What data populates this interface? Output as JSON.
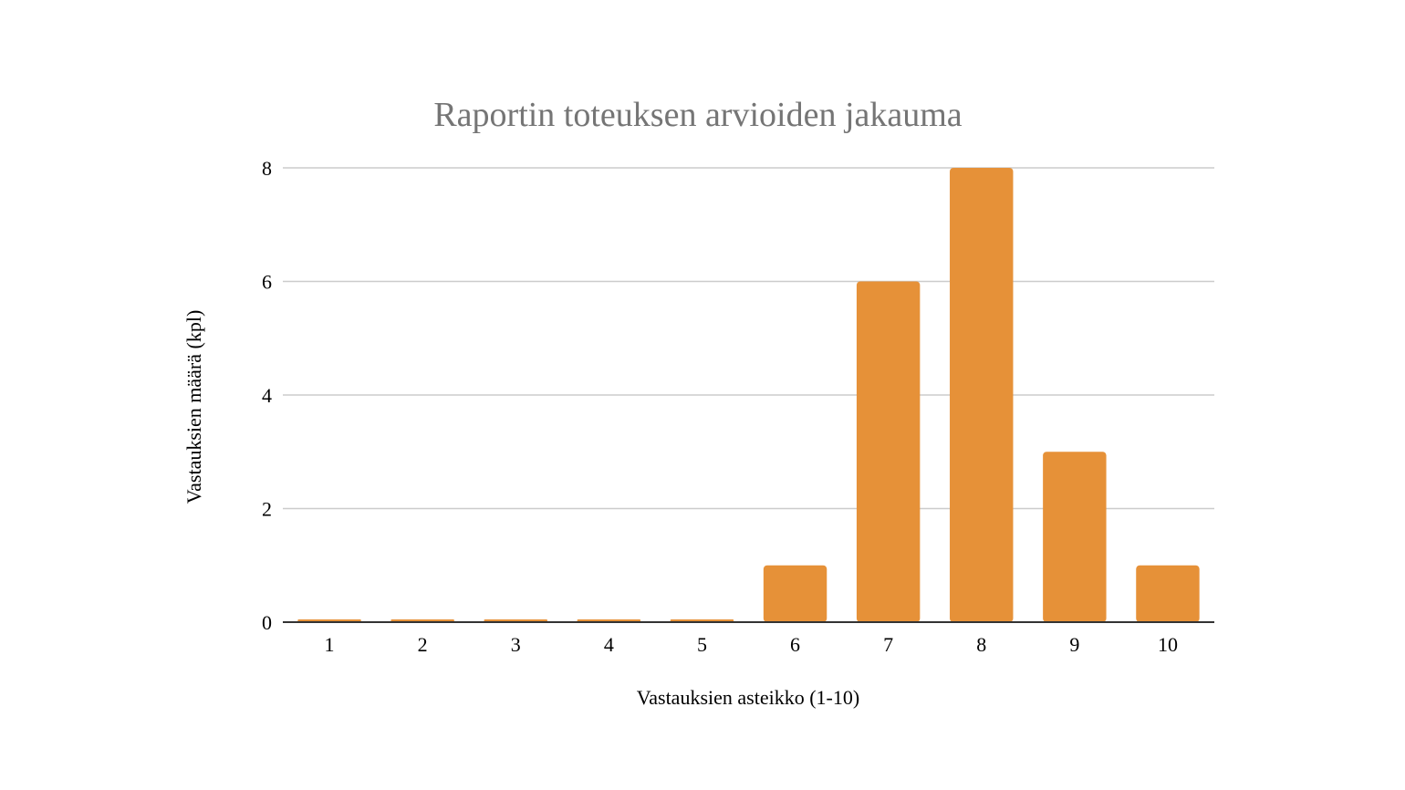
{
  "chart_data": {
    "type": "bar",
    "title": "Raportin toteuksen arvioiden jakauma",
    "xlabel": "Vastauksien asteikko (1-10)",
    "ylabel": "Vastauksien määrä (kpl)",
    "categories": [
      "1",
      "2",
      "3",
      "4",
      "5",
      "6",
      "7",
      "8",
      "9",
      "10"
    ],
    "values": [
      0,
      0,
      0,
      0,
      0,
      1,
      6,
      8,
      3,
      1
    ],
    "ylim": [
      0,
      8
    ],
    "yticks": [
      "0",
      "2",
      "4",
      "6",
      "8"
    ],
    "grid": true,
    "legend": "none",
    "colors": {
      "bar": "#E69138",
      "grid": "#CCCCCC",
      "axis": "#333333",
      "title": "#757575"
    }
  }
}
